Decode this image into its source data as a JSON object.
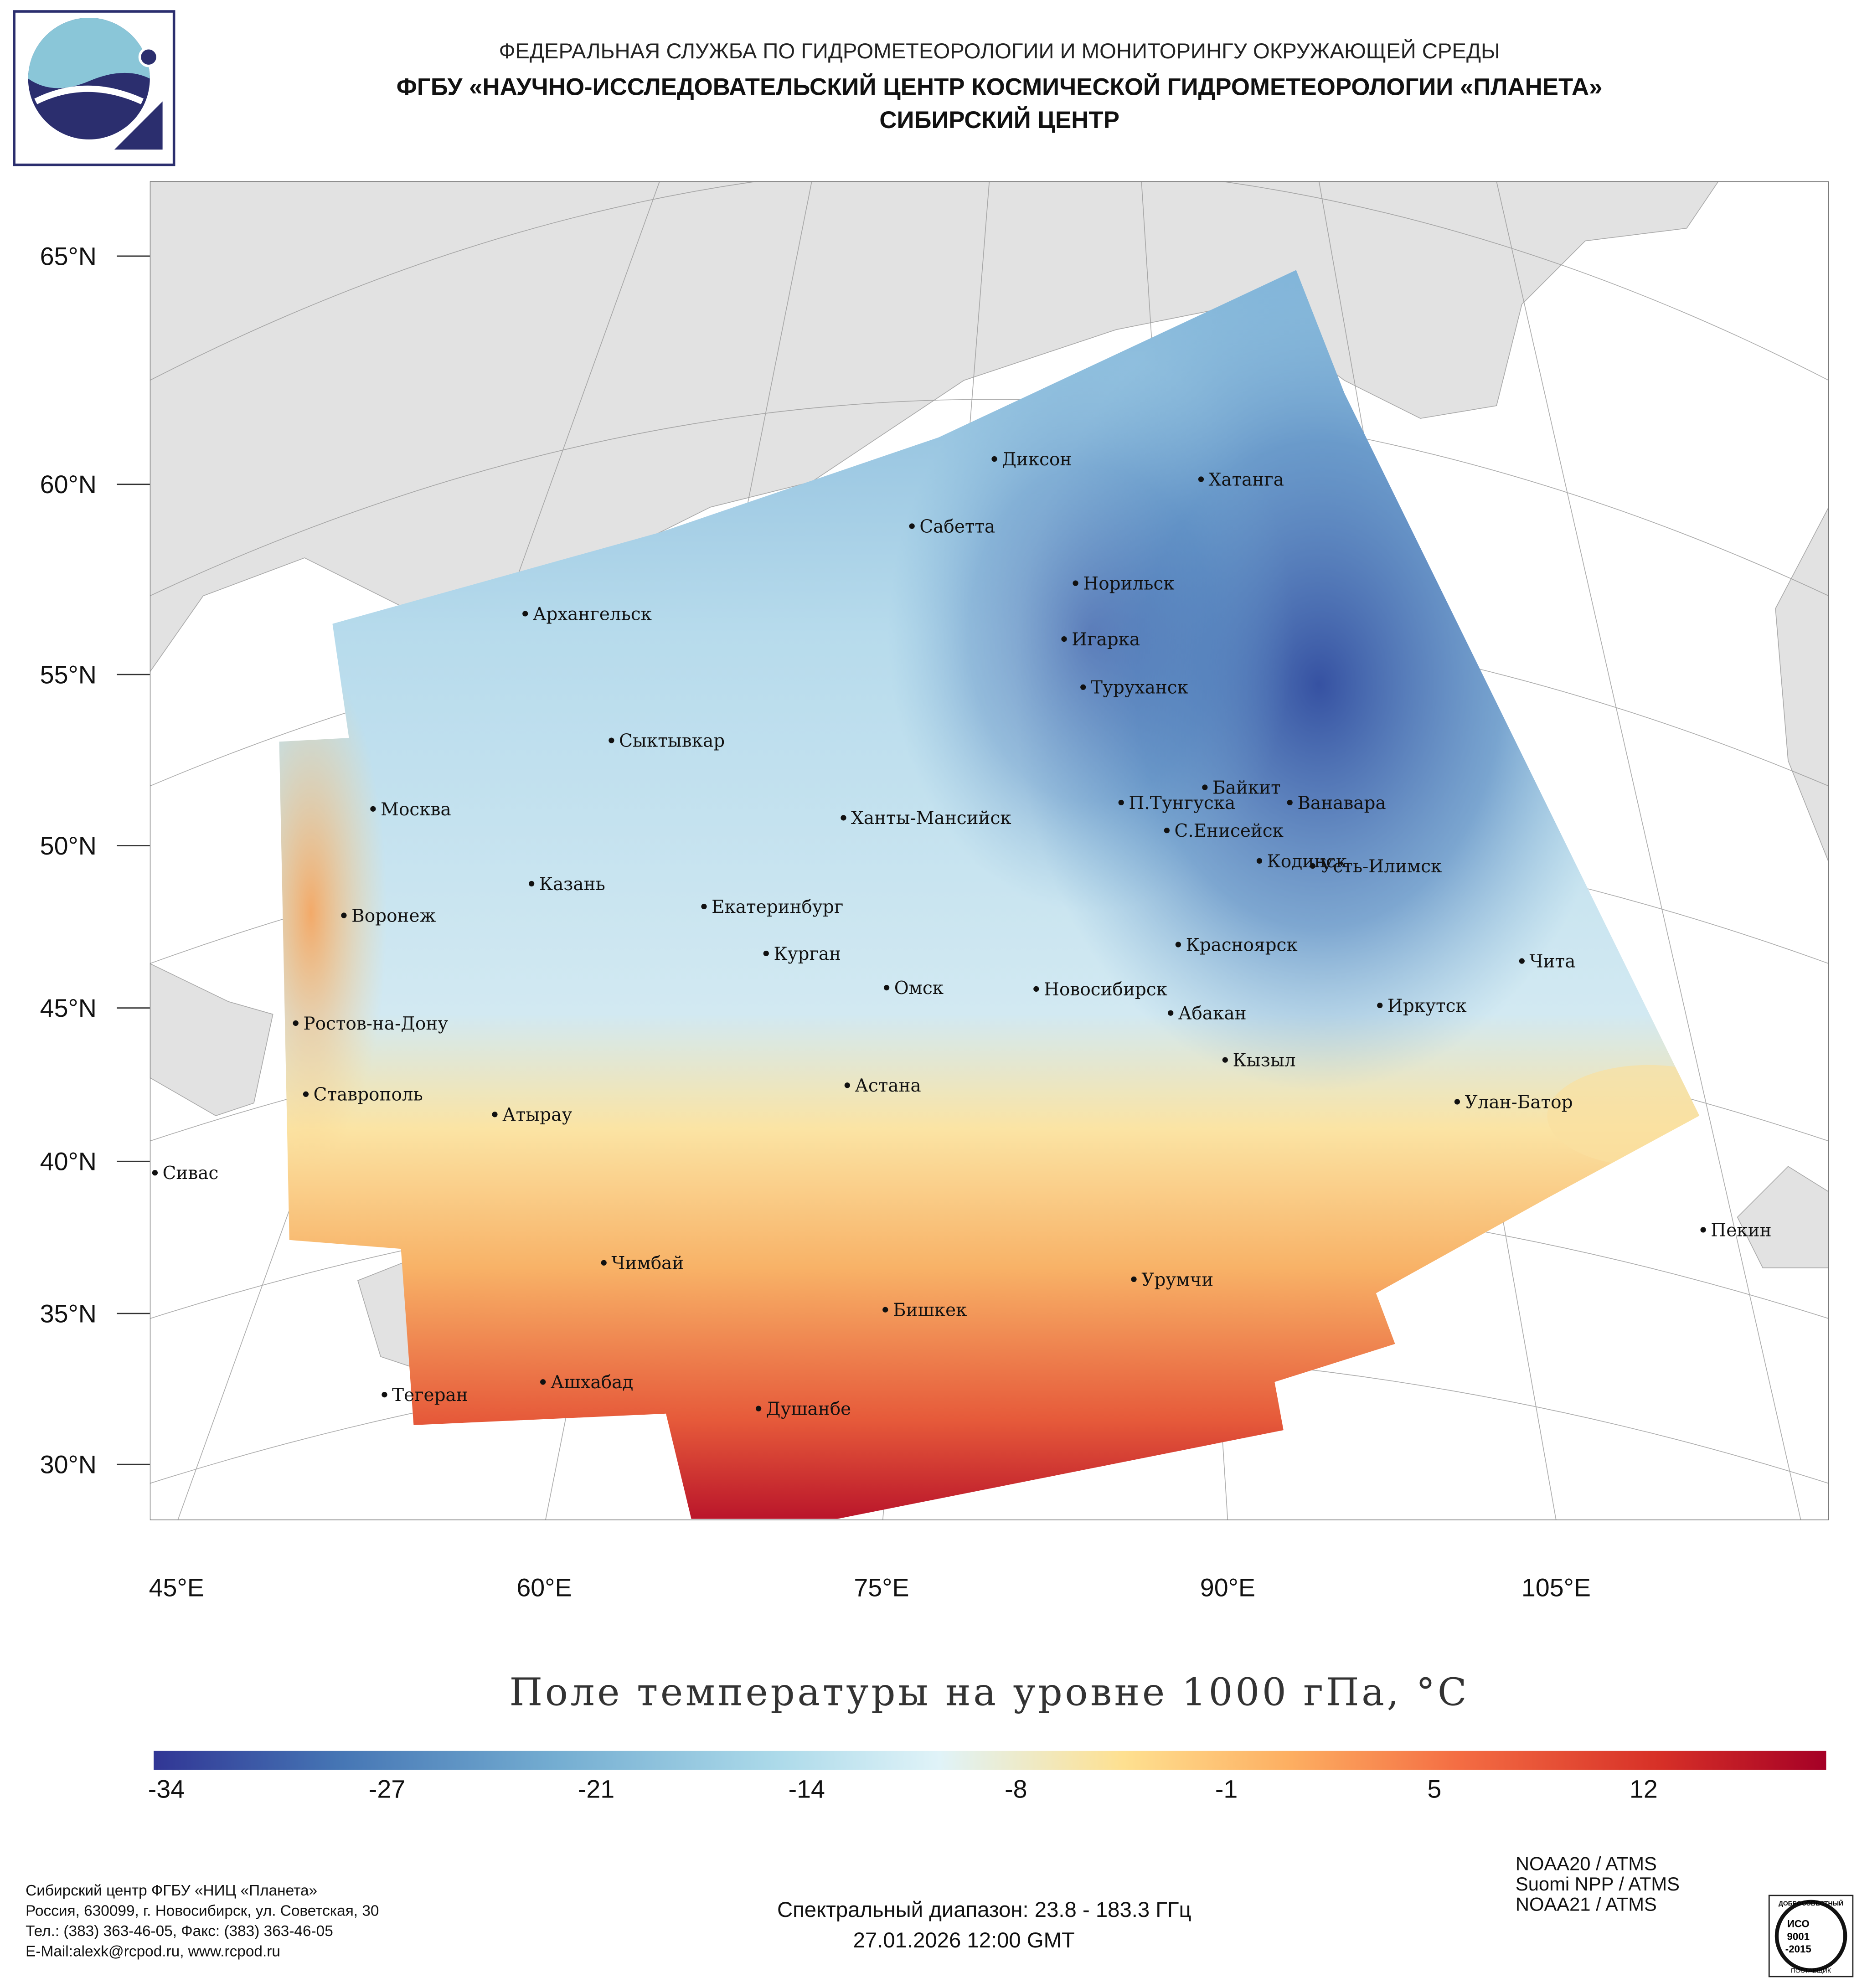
{
  "header": {
    "line1": "ФЕДЕРАЛЬНАЯ СЛУЖБА ПО ГИДРОМЕТЕОРОЛОГИИ И МОНИТОРИНГУ ОКРУЖАЮЩЕЙ СРЕДЫ",
    "line2": "ФГБУ «НАУЧНО-ИССЛЕДОВАТЕЛЬСКИЙ ЦЕНТР КОСМИЧЕСКОЙ ГИДРОМЕТЕОРОЛОГИИ «ПЛАНЕТА»",
    "line3": "СИБИРСКИЙ ЦЕНТР"
  },
  "map": {
    "lat_labels": [
      "65°N",
      "60°N",
      "55°N",
      "50°N",
      "45°N",
      "40°N",
      "35°N",
      "30°N"
    ],
    "lon_labels": [
      "45°E",
      "60°E",
      "75°E",
      "90°E",
      "105°E"
    ],
    "cities": [
      "Диксон",
      "Хатанга",
      "Сабетта",
      "Норильск",
      "Игарка",
      "Архангельск",
      "Туруханск",
      "Сыктывкар",
      "Байкит",
      "П.Тунгуска",
      "Ванавара",
      "Москва",
      "Ханты-Мансийск",
      "С.Енисейск",
      "Кодинск",
      "Усть-Илимск",
      "Казань",
      "Екатеринбург",
      "Воронеж",
      "Красноярск",
      "Курган",
      "Чита",
      "Омск",
      "Новосибирск",
      "Иркутск",
      "Абакан",
      "Ростов-на-Дону",
      "Кызыл",
      "Астана",
      "Ставрополь",
      "Улан-Батор",
      "Атырау",
      "Сивас",
      "Пекин",
      "Чимбай",
      "Урумчи",
      "Бишкек",
      "Ашхабад",
      "Тегеран",
      "Душанбе"
    ]
  },
  "title": "Поле температуры на уровне 1000 гПа, °C",
  "colorbar": {
    "ticks": [
      "-34",
      "-27",
      "-21",
      "-14",
      "-8",
      "-1",
      "5",
      "12"
    ],
    "colors": [
      "#313695",
      "#4575b4",
      "#74add1",
      "#abd9e9",
      "#e0f3f8",
      "#fee090",
      "#fdae61",
      "#f46d43",
      "#d73027",
      "#a50026"
    ]
  },
  "footer": {
    "org": [
      "Сибирский центр ФГБУ «НИЦ «Планета»",
      "Россия, 630099, г. Новосибирск, ул. Советская, 30",
      "Тел.: (383) 363-46-05, Факс: (383) 363-46-05",
      "E-Mail:alexk@rcpod.ru, www.rcpod.ru"
    ],
    "spectral": "Спектральный диапазон: 23.8 - 183.3 ГГц",
    "datetime": "27.01.2026 12:00 GMT",
    "satellites": [
      "NOAA20 / ATMS",
      "Suomi NPP / ATMS",
      "NOAA21 / ATMS"
    ],
    "iso": {
      "top": "ДОБРОСОВЕСТНЫЙ",
      "l1": "ИСО",
      "l2": "9001",
      "l3": "-2015",
      "bottom": "ПОСТАВЩИК"
    }
  }
}
